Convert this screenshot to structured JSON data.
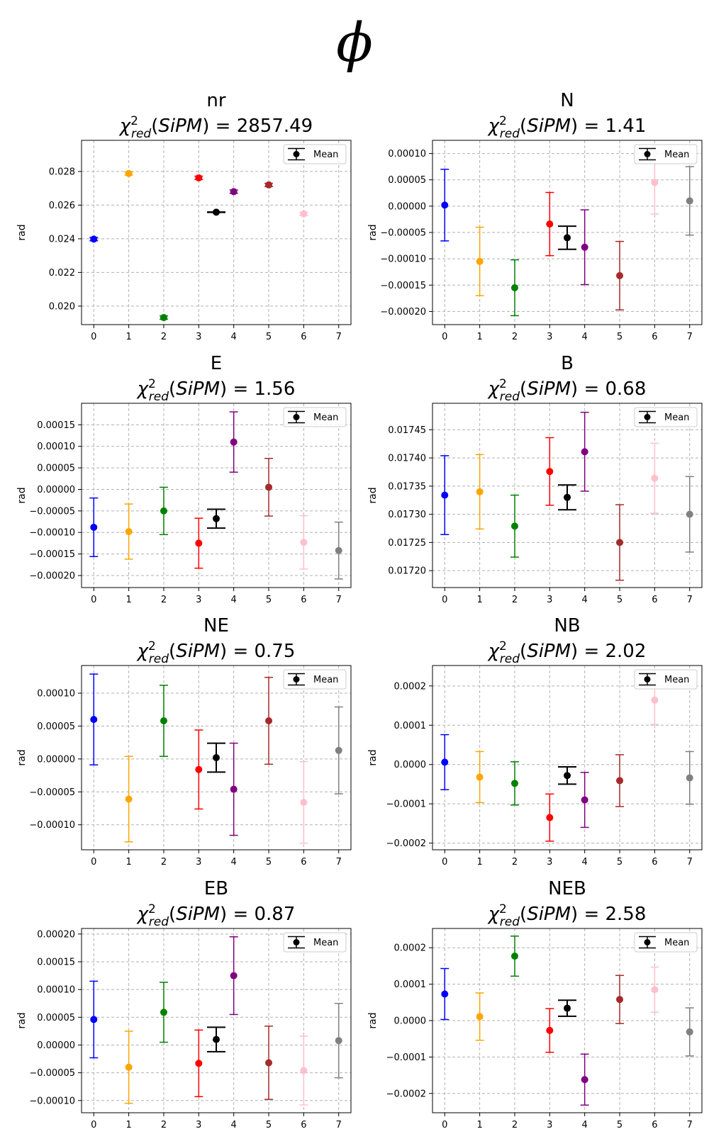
{
  "title": "ϕ",
  "chart_data": [
    {
      "type": "scatter",
      "title": "nr",
      "chi2": "2857.49",
      "ylabel": "rad",
      "ylim": [
        0.0189,
        0.02985
      ],
      "yticks": [
        0.02,
        0.022,
        0.024,
        0.026,
        0.028
      ],
      "ytick_labels": [
        "0.020",
        "0.022",
        "0.024",
        "0.026",
        "0.028"
      ],
      "x": [
        0,
        1,
        2,
        3,
        4,
        5,
        6,
        7
      ],
      "y": [
        0.02398,
        0.02788,
        0.01932,
        0.02762,
        0.0268,
        0.0272,
        0.02548,
        null
      ],
      "yerr": [
        0.0001,
        0.0001,
        0.0001,
        0.0001,
        0.0001,
        0.0001,
        0.0001,
        null
      ],
      "mean": {
        "x": 3.5,
        "y": 0.02558,
        "err": 1e-05
      },
      "legend": "Mean"
    },
    {
      "type": "scatter",
      "title": "N",
      "chi2": "1.41",
      "ylabel": "rad",
      "ylim": [
        -0.000225,
        0.000125
      ],
      "yticks": [
        -0.0002,
        -0.00015,
        -0.0001,
        -5e-05,
        0,
        5e-05,
        0.0001
      ],
      "ytick_labels": [
        "−0.00020",
        "−0.00015",
        "−0.00010",
        "−0.00005",
        "0.00000",
        "0.00005",
        "0.00010"
      ],
      "x": [
        0,
        1,
        2,
        3,
        4,
        5,
        6,
        7
      ],
      "y": [
        2e-06,
        -0.000105,
        -0.000155,
        -3.4e-05,
        -7.8e-05,
        -0.000132,
        4.5e-05,
        1e-05
      ],
      "yerr": [
        6.8e-05,
        6.5e-05,
        5.3e-05,
        6e-05,
        7.1e-05,
        6.5e-05,
        6e-05,
        6.5e-05
      ],
      "mean": {
        "x": 3.5,
        "y": -6e-05,
        "err": 2.2e-05
      },
      "legend": "Mean"
    },
    {
      "type": "scatter",
      "title": "E",
      "chi2": "1.56",
      "ylabel": "rad",
      "ylim": [
        -0.000228,
        0.0002
      ],
      "yticks": [
        -0.0002,
        -0.00015,
        -0.0001,
        -5e-05,
        0,
        5e-05,
        0.0001,
        0.00015
      ],
      "ytick_labels": [
        "−0.00020",
        "−0.00015",
        "−0.00010",
        "−0.00005",
        "0.00000",
        "0.00005",
        "0.00010",
        "0.00015"
      ],
      "x": [
        0,
        1,
        2,
        3,
        4,
        5,
        6,
        7
      ],
      "y": [
        -8.8e-05,
        -9.8e-05,
        -5e-05,
        -0.000125,
        0.00011,
        5e-06,
        -0.000123,
        -0.000142
      ],
      "yerr": [
        6.8e-05,
        6.4e-05,
        5.5e-05,
        5.8e-05,
        7e-05,
        6.7e-05,
        6.2e-05,
        6.6e-05
      ],
      "mean": {
        "x": 3.5,
        "y": -6.8e-05,
        "err": 2.2e-05
      },
      "legend": "Mean"
    },
    {
      "type": "scatter",
      "title": "B",
      "chi2": "0.68",
      "ylabel": "rad",
      "ylim": [
        0.01717,
        0.017497
      ],
      "yticks": [
        0.0172,
        0.01725,
        0.0173,
        0.01735,
        0.0174,
        0.01745
      ],
      "ytick_labels": [
        "0.01720",
        "0.01725",
        "0.01730",
        "0.01735",
        "0.01740",
        "0.01745"
      ],
      "x": [
        0,
        1,
        2,
        3,
        4,
        5,
        6,
        7
      ],
      "y": [
        0.017334,
        0.01734,
        0.017279,
        0.017376,
        0.017411,
        0.01725,
        0.017364,
        0.0173
      ],
      "yerr": [
        7e-05,
        6.6e-05,
        5.5e-05,
        6e-05,
        7e-05,
        6.7e-05,
        6.2e-05,
        6.7e-05
      ],
      "mean": {
        "x": 3.5,
        "y": 0.01733,
        "err": 2.2e-05
      },
      "legend": "Mean"
    },
    {
      "type": "scatter",
      "title": "NE",
      "chi2": "0.75",
      "ylabel": "rad",
      "ylim": [
        -0.000138,
        0.000142
      ],
      "yticks": [
        -0.0001,
        -5e-05,
        0,
        5e-05,
        0.0001
      ],
      "ytick_labels": [
        "−0.00010",
        "−0.00005",
        "0.00000",
        "0.00005",
        "0.00010"
      ],
      "x": [
        0,
        1,
        2,
        3,
        4,
        5,
        6,
        7
      ],
      "y": [
        6e-05,
        -6.1e-05,
        5.8e-05,
        -1.6e-05,
        -4.6e-05,
        5.8e-05,
        -6.6e-05,
        1.3e-05
      ],
      "yerr": [
        6.9e-05,
        6.5e-05,
        5.4e-05,
        6e-05,
        7e-05,
        6.6e-05,
        6.2e-05,
        6.6e-05
      ],
      "mean": {
        "x": 3.5,
        "y": 2e-06,
        "err": 2.2e-05
      },
      "legend": "Mean"
    },
    {
      "type": "scatter",
      "title": "NB",
      "chi2": "2.02",
      "ylabel": "rad",
      "ylim": [
        -0.000217,
        0.000252
      ],
      "yticks": [
        -0.0002,
        -0.0001,
        0,
        0.0001,
        0.0002
      ],
      "ytick_labels": [
        "−0.0002",
        "−0.0001",
        "0.0000",
        "0.0001",
        "0.0002"
      ],
      "x": [
        0,
        1,
        2,
        3,
        4,
        5,
        6,
        7
      ],
      "y": [
        6e-06,
        -3.2e-05,
        -4.8e-05,
        -0.000135,
        -9e-05,
        -4.1e-05,
        0.000164,
        -3.4e-05
      ],
      "yerr": [
        7e-05,
        6.5e-05,
        5.5e-05,
        6e-05,
        7e-05,
        6.6e-05,
        6.2e-05,
        6.7e-05
      ],
      "mean": {
        "x": 3.5,
        "y": -2.8e-05,
        "err": 2.2e-05
      },
      "legend": "Mean"
    },
    {
      "type": "scatter",
      "title": "EB",
      "chi2": "0.87",
      "ylabel": "rad",
      "ylim": [
        -0.000122,
        0.00021
      ],
      "yticks": [
        -0.0001,
        -5e-05,
        0,
        5e-05,
        0.0001,
        0.00015,
        0.0002
      ],
      "ytick_labels": [
        "−0.00010",
        "−0.00005",
        "0.00000",
        "0.00005",
        "0.00010",
        "0.00015",
        "0.00020"
      ],
      "x": [
        0,
        1,
        2,
        3,
        4,
        5,
        6,
        7
      ],
      "y": [
        4.6e-05,
        -4e-05,
        5.9e-05,
        -3.3e-05,
        0.000125,
        -3.2e-05,
        -4.6e-05,
        8e-06
      ],
      "yerr": [
        6.9e-05,
        6.5e-05,
        5.4e-05,
        6e-05,
        7e-05,
        6.6e-05,
        6.2e-05,
        6.7e-05
      ],
      "mean": {
        "x": 3.5,
        "y": 1e-05,
        "err": 2.2e-05
      },
      "legend": "Mean"
    },
    {
      "type": "scatter",
      "title": "NEB",
      "chi2": "2.58",
      "ylabel": "rad",
      "ylim": [
        -0.000253,
        0.000253
      ],
      "yticks": [
        -0.0002,
        -0.0001,
        0,
        0.0001,
        0.0002
      ],
      "ytick_labels": [
        "−0.0002",
        "−0.0001",
        "0.0000",
        "0.0001",
        "0.0002"
      ],
      "x": [
        0,
        1,
        2,
        3,
        4,
        5,
        6,
        7
      ],
      "y": [
        7.3e-05,
        1.1e-05,
        0.000177,
        -2.7e-05,
        -0.000162,
        5.8e-05,
        8.5e-05,
        -3.1e-05
      ],
      "yerr": [
        7e-05,
        6.5e-05,
        5.5e-05,
        6e-05,
        7e-05,
        6.6e-05,
        6.2e-05,
        6.6e-05
      ],
      "mean": {
        "x": 3.5,
        "y": 3.4e-05,
        "err": 2.2e-05
      },
      "legend": "Mean"
    }
  ],
  "point_colors": [
    "#0000ff",
    "#ffa500",
    "#008000",
    "#ff0000",
    "#800080",
    "#a52a2a",
    "#ffc0cb",
    "#808080"
  ],
  "mean_color": "#000000",
  "grid_color": "#b0b0b0",
  "xtick_labels": [
    "0",
    "1",
    "2",
    "3",
    "4",
    "5",
    "6",
    "7"
  ]
}
